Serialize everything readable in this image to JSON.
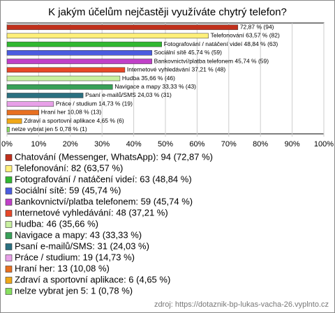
{
  "chart_data": {
    "type": "bar",
    "orientation": "horizontal",
    "title": "K jakým účelům nejčastěji využíváte chytrý telefon?",
    "categories": [
      "Chatování (Messenger, WhatsApp): 94 (72,87 %)",
      "Telefonování: 82 (63,57 %)",
      "Fotografování / natáčení videí: 63 (48,84 %)",
      "Sociální sítě: 59 (45,74 %)",
      "Bankovnictví/platba telefonem: 59 (45,74 %)",
      "Internetové vyhledávání: 48 (37,21 %)",
      "Hudba: 46 (35,66 %)",
      "Navigace a mapy: 43 (33,33 %)",
      "Psaní e-mailů/SMS: 31 (24,03 %)",
      "Práce / studium: 19 (14,73 %)",
      "Hraní her: 13 (10,08 %)",
      "Zdraví a sportovní aplikace: 6 (4,65 %)",
      "nelze vybrat jen 5: 1 (0,78 %)"
    ],
    "values": [
      72.87,
      63.57,
      48.84,
      45.74,
      45.74,
      37.21,
      35.66,
      33.33,
      24.03,
      14.73,
      10.08,
      4.65,
      0.78
    ],
    "value_labels": [
      "72,87 % (94)",
      "Telefonování 63,57 % (82)",
      "Fotografování / natáčení videí 48,84 % (63)",
      "Sociální sítě 45,74 % (59)",
      "Bankovnictví/platba telefonem 45,74 % (59)",
      "Internetové vyhledávání 37,21 % (48)",
      "Hudba 35,66 % (46)",
      "Navigace a mapy 33,33 % (43)",
      "Psaní e-mailů/SMS 24,03 % (31)",
      "Práce / studium 14,73 % (19)",
      "Hraní her 10,08 % (13)",
      "Zdraví a sportovní aplikace 4,65 % (6)",
      "nelze vybrat jen 5 0,78 % (1)"
    ],
    "colors": [
      "#c0301c",
      "#fff07a",
      "#30b830",
      "#4a5ce0",
      "#c040c8",
      "#e84828",
      "#c8f0a0",
      "#38a058",
      "#2a7080",
      "#e8a0e8",
      "#e87020",
      "#f0a818",
      "#88e060"
    ],
    "xlim": [
      0,
      100
    ],
    "xticks": [
      {
        "value": 0,
        "label": "0%"
      },
      {
        "value": 10,
        "label": "10%"
      },
      {
        "value": 20,
        "label": "20%"
      },
      {
        "value": 30,
        "label": "30%"
      },
      {
        "value": 40,
        "label": "40%"
      },
      {
        "value": 50,
        "label": "50%"
      },
      {
        "value": 60,
        "label": "60%"
      },
      {
        "value": 70,
        "label": "70%"
      },
      {
        "value": 80,
        "label": "80%"
      },
      {
        "value": 90,
        "label": "90%"
      },
      {
        "value": 100,
        "label": "100%"
      }
    ],
    "grid": true,
    "source": "zdroj: https://dotaznik-bp-lukas-vacha-26.vyplnto.cz"
  }
}
